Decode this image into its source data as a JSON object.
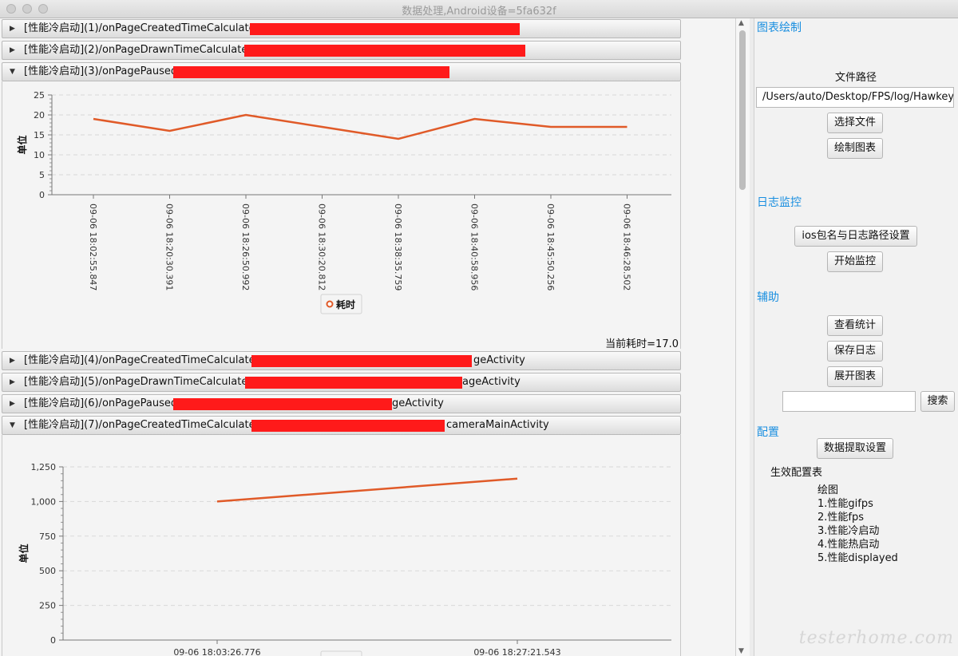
{
  "window": {
    "title": "数据处理,Android设备=5fa632f"
  },
  "panes": [
    {
      "title": "[性能冷启动](1)/onPageCreatedTimeCalculated",
      "expanded": false
    },
    {
      "title": "[性能冷启动](2)/onPageDrawnTimeCalculated",
      "expanded": false
    },
    {
      "title": "[性能冷启动](3)/onPagePaused",
      "expanded": true
    },
    {
      "title": "[性能冷启动](4)/onPageCreatedTimeCalculated",
      "suffix": "geActivity",
      "expanded": false
    },
    {
      "title": "[性能冷启动](5)/onPageDrawnTimeCalculated",
      "suffix": "ageActivity",
      "expanded": false
    },
    {
      "title": "[性能冷启动](6)/onPagePaused",
      "suffix": "geActivity",
      "expanded": false
    },
    {
      "title": "[性能冷启动](7)/onPageCreatedTimeCalculated",
      "suffix": "cameraMainActivity",
      "expanded": true
    }
  ],
  "pane3": {
    "current_label": "当前耗时=17.0"
  },
  "chart_data": [
    {
      "type": "line",
      "ylabel": "单位",
      "xlabel": "",
      "categories": [
        "09-06 18:02:55.847",
        "09-06 18:20:30.391",
        "09-06 18:26:50.992",
        "09-06 18:30:20.812",
        "09-06 18:38:35.759",
        "09-06 18:40:58.956",
        "09-06 18:45:50.256",
        "09-06 18:46:28.502"
      ],
      "series": [
        {
          "name": "耗时",
          "values": [
            19,
            16,
            20,
            17,
            14,
            19,
            17,
            17
          ],
          "color": "#e05a28"
        }
      ],
      "ylim": [
        0,
        25
      ],
      "yticks": [
        "0",
        "5",
        "10",
        "15",
        "20",
        "25"
      ],
      "grid": true,
      "legend": "bottom-center"
    },
    {
      "type": "line",
      "ylabel": "单位",
      "xlabel": "",
      "categories": [
        "09-06 18:03:26.776",
        "09-06 18:27:21.543"
      ],
      "series": [
        {
          "values": [
            1000,
            1165
          ],
          "color": "#e05a28"
        }
      ],
      "ylim": [
        0,
        1250
      ],
      "yticks": [
        "0",
        "250",
        "500",
        "750",
        "1,000",
        "1,250"
      ],
      "grid": true
    }
  ],
  "sidebar": {
    "chart_section": "图表绘制",
    "file_path_label": "文件路径",
    "file_path_value": "/Users/auto/Desktop/FPS/log/Hawkeye",
    "choose_file": "选择文件",
    "draw_chart": "绘制图表",
    "log_section": "日志监控",
    "ios_settings": "ios包名与日志路径设置",
    "start_monitor": "开始监控",
    "assist_section": "辅助",
    "view_stats": "查看统计",
    "save_log": "保存日志",
    "expand_chart": "展开图表",
    "search_placeholder": "",
    "search": "搜索",
    "config_section": "配置",
    "extract_settings": "数据提取设置",
    "effective_config": "生效配置表",
    "draw_label": "绘图",
    "config_items": [
      "1.性能gifps",
      "2.性能fps",
      "3.性能冷启动",
      "4.性能热启动",
      "5.性能displayed"
    ]
  },
  "watermark": "testerhome.com",
  "colors": {
    "accent": "#1a8fe0",
    "series": "#e05a28",
    "redaction": "#ff1a1a"
  }
}
